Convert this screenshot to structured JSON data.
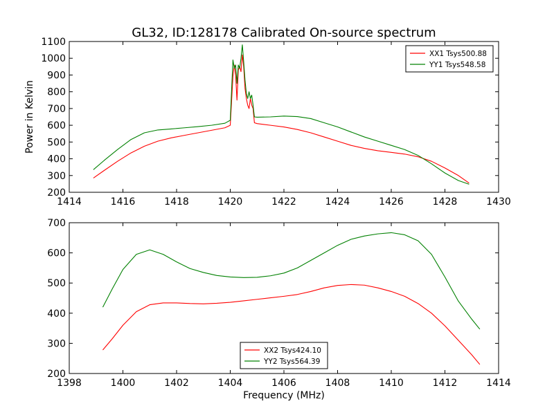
{
  "title": "GL32, ID:128178 Calibrated On-source spectrum",
  "colors": {
    "series_a": "#ff0000",
    "series_b": "#008000",
    "frame": "#000000",
    "background": "#ffffff"
  },
  "chart_data": [
    {
      "type": "line",
      "title": "GL32, ID:128178 Calibrated On-source spectrum",
      "xlabel": "",
      "ylabel": "Power in Kelvin",
      "xlim": [
        1414,
        1430
      ],
      "ylim": [
        200,
        1100
      ],
      "xticks": [
        1414,
        1416,
        1418,
        1420,
        1422,
        1424,
        1426,
        1428,
        1430
      ],
      "yticks": [
        200,
        300,
        400,
        500,
        600,
        700,
        800,
        900,
        1000,
        1100
      ],
      "grid": false,
      "legend": "upper right",
      "series": [
        {
          "name": "XX1 Tsys500.88",
          "color": "#ff0000",
          "x": [
            1414.9,
            1415.3,
            1415.8,
            1416.3,
            1416.8,
            1417.3,
            1417.8,
            1418.3,
            1418.8,
            1419.3,
            1419.8,
            1420.0,
            1420.1,
            1420.15,
            1420.2,
            1420.25,
            1420.3,
            1420.35,
            1420.4,
            1420.45,
            1420.5,
            1420.55,
            1420.6,
            1420.65,
            1420.7,
            1420.75,
            1420.8,
            1420.85,
            1420.9,
            1421.0,
            1421.5,
            1422.0,
            1422.5,
            1423.0,
            1423.5,
            1424.0,
            1424.5,
            1425.0,
            1425.5,
            1426.0,
            1426.5,
            1427.0,
            1427.5,
            1428.0,
            1428.5,
            1428.9
          ],
          "y": [
            285,
            330,
            385,
            435,
            475,
            505,
            525,
            540,
            555,
            570,
            585,
            600,
            890,
            960,
            900,
            750,
            930,
            950,
            920,
            1020,
            950,
            820,
            760,
            720,
            700,
            760,
            720,
            700,
            615,
            610,
            600,
            590,
            575,
            555,
            530,
            505,
            480,
            462,
            448,
            438,
            428,
            412,
            385,
            345,
            300,
            255
          ]
        },
        {
          "name": "YY1 Tsys548.58",
          "color": "#008000",
          "x": [
            1414.9,
            1415.3,
            1415.8,
            1416.3,
            1416.8,
            1417.3,
            1417.8,
            1418.3,
            1418.8,
            1419.3,
            1419.8,
            1420.0,
            1420.1,
            1420.15,
            1420.2,
            1420.25,
            1420.3,
            1420.35,
            1420.4,
            1420.45,
            1420.5,
            1420.55,
            1420.6,
            1420.65,
            1420.7,
            1420.75,
            1420.8,
            1420.85,
            1420.9,
            1421.0,
            1421.5,
            1422.0,
            1422.5,
            1423.0,
            1423.5,
            1424.0,
            1424.5,
            1425.0,
            1425.5,
            1426.0,
            1426.5,
            1427.0,
            1427.5,
            1428.0,
            1428.5,
            1428.9
          ],
          "y": [
            335,
            390,
            455,
            515,
            555,
            572,
            578,
            585,
            592,
            600,
            612,
            630,
            990,
            940,
            960,
            850,
            960,
            940,
            1000,
            1080,
            980,
            870,
            790,
            760,
            800,
            760,
            780,
            720,
            650,
            648,
            650,
            655,
            652,
            640,
            615,
            590,
            560,
            530,
            505,
            480,
            455,
            420,
            370,
            315,
            270,
            248
          ]
        }
      ]
    },
    {
      "type": "line",
      "title": "",
      "xlabel": "Frequency (MHz)",
      "ylabel": "",
      "xlim": [
        1398,
        1414
      ],
      "ylim": [
        200,
        700
      ],
      "xticks": [
        1398,
        1400,
        1402,
        1404,
        1406,
        1408,
        1410,
        1412,
        1414
      ],
      "yticks": [
        200,
        300,
        400,
        500,
        600,
        700
      ],
      "grid": false,
      "legend": "lower center",
      "series": [
        {
          "name": "XX2 Tsys424.10",
          "color": "#ff0000",
          "x": [
            1399.25,
            1399.6,
            1400.0,
            1400.5,
            1401.0,
            1401.5,
            1402.0,
            1402.5,
            1403.0,
            1403.5,
            1404.0,
            1404.5,
            1405.0,
            1405.5,
            1406.0,
            1406.5,
            1407.0,
            1407.5,
            1408.0,
            1408.5,
            1409.0,
            1409.5,
            1410.0,
            1410.5,
            1411.0,
            1411.5,
            1412.0,
            1412.5,
            1413.0,
            1413.3
          ],
          "y": [
            278,
            315,
            360,
            405,
            428,
            434,
            434,
            432,
            431,
            433,
            436,
            441,
            446,
            451,
            456,
            462,
            472,
            484,
            492,
            495,
            493,
            484,
            472,
            456,
            432,
            400,
            358,
            310,
            262,
            230
          ]
        },
        {
          "name": "YY2 Tsys564.39",
          "color": "#008000",
          "x": [
            1399.25,
            1399.6,
            1400.0,
            1400.5,
            1401.0,
            1401.5,
            1402.0,
            1402.5,
            1403.0,
            1403.5,
            1404.0,
            1404.5,
            1405.0,
            1405.5,
            1406.0,
            1406.5,
            1407.0,
            1407.5,
            1408.0,
            1408.5,
            1409.0,
            1409.5,
            1410.0,
            1410.5,
            1411.0,
            1411.5,
            1412.0,
            1412.5,
            1413.0,
            1413.3
          ],
          "y": [
            420,
            480,
            545,
            595,
            610,
            595,
            570,
            548,
            535,
            525,
            520,
            518,
            519,
            524,
            533,
            550,
            575,
            600,
            625,
            645,
            656,
            663,
            667,
            660,
            640,
            595,
            520,
            440,
            380,
            347
          ]
        }
      ]
    }
  ]
}
